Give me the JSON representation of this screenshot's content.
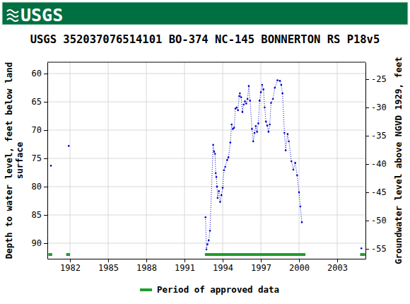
{
  "chart_data": {
    "type": "scatter",
    "logo": "USGS",
    "title": "USGS 352037076514101 BO-374 NC-145 BONNERTON RS P18v5",
    "ylabel": [
      "Depth to water level, feet below land",
      "surface"
    ],
    "y2label": "Groundwater level above NGVD 1929, feet",
    "x": [
      1980.5,
      1981.2,
      1981.9,
      1987.0,
      1992.65,
      1992.72,
      1992.8,
      1992.9,
      1993.0,
      1993.25,
      1993.32,
      1993.4,
      1993.45,
      1993.5,
      1993.55,
      1993.6,
      1993.7,
      1993.8,
      1993.9,
      1994.0,
      1994.1,
      1994.2,
      1994.35,
      1994.45,
      1994.6,
      1994.7,
      1994.8,
      1994.9,
      1995.0,
      1995.1,
      1995.2,
      1995.3,
      1995.35,
      1995.45,
      1995.55,
      1995.65,
      1995.75,
      1995.85,
      1995.95,
      1996.05,
      1996.15,
      1996.3,
      1996.4,
      1996.5,
      1996.6,
      1996.7,
      1996.8,
      1996.9,
      1997.0,
      1997.1,
      1997.2,
      1997.3,
      1997.4,
      1997.5,
      1997.6,
      1997.7,
      1997.8,
      1997.95,
      1998.1,
      1998.3,
      1998.5,
      1998.6,
      1998.7,
      1998.85,
      1998.95,
      1999.1,
      1999.2,
      1999.4,
      1999.55,
      1999.7,
      1999.85,
      2000.0,
      2000.1,
      2000.22,
      2002.5,
      2004.9
    ],
    "series": [
      {
        "color": "#0000cc",
        "marker": "dot",
        "line_style": "dotted",
        "values": [
          76.3,
          null,
          72.8,
          null,
          85.4,
          91.1,
          90.2,
          89.5,
          87.8,
          72.6,
          73.8,
          74.2,
          77.6,
          78.3,
          80.0,
          82.0,
          80.8,
          82.7,
          81.5,
          80.2,
          77.1,
          76.5,
          75.3,
          74.8,
          72.2,
          69.0,
          69.8,
          69.6,
          66.2,
          66.0,
          66.5,
          64.0,
          63.5,
          64.2,
          66.8,
          65.5,
          64.9,
          65.3,
          64.5,
          62.2,
          64.8,
          69.8,
          72.0,
          70.5,
          69.3,
          70.3,
          68.8,
          64.8,
          63.3,
          62.0,
          62.8,
          66.0,
          68.5,
          69.2,
          70.3,
          69.0,
          65.2,
          64.5,
          62.5,
          61.2,
          61.3,
          62.0,
          63.5,
          70.5,
          73.6,
          70.7,
          72.0,
          75.5,
          77.0,
          75.8,
          78.0,
          81.0,
          83.5,
          86.3,
          null,
          90.9
        ]
      },
      {
        "name": "Period of approved data",
        "type": "band",
        "color": "#1f9e2c",
        "x_ranges": [
          [
            1980.3,
            1980.6
          ],
          [
            1981.7,
            1982.0
          ],
          [
            1992.6,
            2000.5
          ],
          [
            2004.8,
            2005.2
          ]
        ]
      }
    ],
    "xlim": [
      1980.22,
      2005.22
    ],
    "xticks": [
      1982,
      1985,
      1988,
      1991,
      1994,
      1997,
      2000,
      2003
    ],
    "ylim": [
      58,
      92.75
    ],
    "yticks": [
      60,
      65,
      70,
      75,
      80,
      85,
      90
    ],
    "y2lim": [
      -22,
      -56.75
    ],
    "y2ticks": [
      -25,
      -30,
      -35,
      -40,
      -45,
      -50,
      -55
    ],
    "grid": true
  }
}
